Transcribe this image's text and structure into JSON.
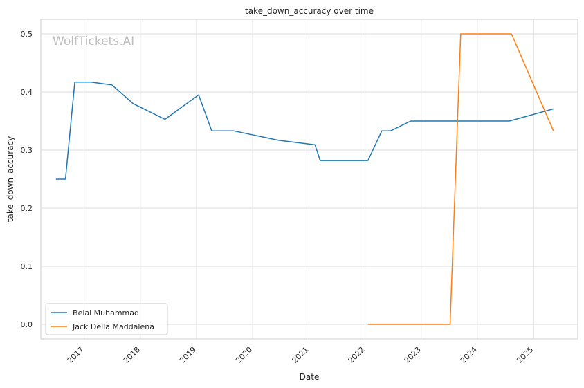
{
  "chart_data": {
    "type": "line",
    "title": "take_down_accuracy over time",
    "xlabel": "Date",
    "ylabel": "take_down_accuracy",
    "watermark": "WolfTickets.AI",
    "x_type": "date",
    "xlim": [
      "2016-03-25",
      "2025-10-15"
    ],
    "ylim": [
      -0.025,
      0.525
    ],
    "x_ticks": [
      "2017",
      "2018",
      "2019",
      "2020",
      "2021",
      "2022",
      "2023",
      "2024",
      "2025"
    ],
    "y_ticks": [
      "0.0",
      "0.1",
      "0.2",
      "0.3",
      "0.4",
      "0.5"
    ],
    "grid": true,
    "legend_position": "lower-left",
    "series": [
      {
        "name": "Belal Muhammad",
        "color": "#1f77b4",
        "points": [
          [
            "2016-07-01",
            0.25
          ],
          [
            "2016-09-01",
            0.25
          ],
          [
            "2016-11-01",
            0.417
          ],
          [
            "2017-02-15",
            0.417
          ],
          [
            "2017-07-01",
            0.412
          ],
          [
            "2017-11-15",
            0.38
          ],
          [
            "2018-06-10",
            0.353
          ],
          [
            "2019-01-15",
            0.395
          ],
          [
            "2019-04-10",
            0.333
          ],
          [
            "2019-09-01",
            0.333
          ],
          [
            "2020-06-15",
            0.317
          ],
          [
            "2021-02-10",
            0.309
          ],
          [
            "2021-03-15",
            0.282
          ],
          [
            "2022-01-20",
            0.282
          ],
          [
            "2022-04-20",
            0.333
          ],
          [
            "2022-06-15",
            0.333
          ],
          [
            "2022-10-25",
            0.35
          ],
          [
            "2024-07-27",
            0.35
          ],
          [
            "2025-05-10",
            0.371
          ]
        ]
      },
      {
        "name": "Jack Della Maddalena",
        "color": "#ff7f0e",
        "points": [
          [
            "2022-01-20",
            0.0
          ],
          [
            "2023-07-08",
            0.0
          ],
          [
            "2023-09-15",
            0.5
          ],
          [
            "2024-08-10",
            0.5
          ],
          [
            "2025-05-10",
            0.333
          ]
        ]
      }
    ]
  }
}
